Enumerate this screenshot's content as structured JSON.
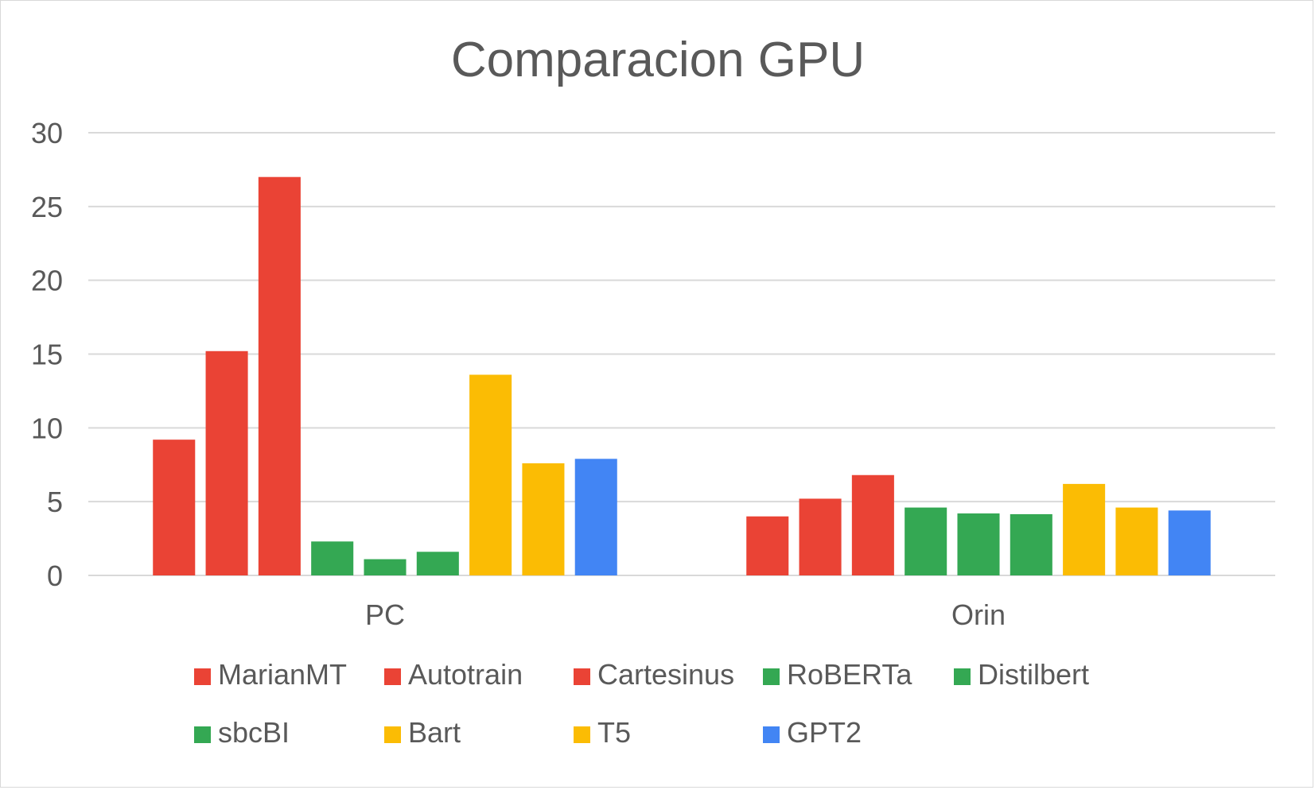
{
  "chart_data": {
    "type": "bar",
    "title": "Comparacion GPU",
    "xlabel": "",
    "ylabel": "",
    "ylim": [
      0,
      30
    ],
    "yticks": [
      0,
      5,
      10,
      15,
      20,
      25,
      30
    ],
    "categories": [
      "PC",
      "Orin"
    ],
    "grid": true,
    "legend_position": "bottom",
    "series": [
      {
        "name": "MarianMT",
        "color": "#EA4335",
        "values": [
          9.2,
          4.0
        ]
      },
      {
        "name": "Autotrain",
        "color": "#EA4335",
        "values": [
          15.2,
          5.2
        ]
      },
      {
        "name": "Cartesinus",
        "color": "#EA4335",
        "values": [
          27.0,
          6.8
        ]
      },
      {
        "name": "RoBERTa",
        "color": "#34A853",
        "values": [
          2.3,
          4.6
        ]
      },
      {
        "name": "Distilbert",
        "color": "#34A853",
        "values": [
          1.1,
          4.2
        ]
      },
      {
        "name": "sbcBI",
        "color": "#34A853",
        "values": [
          1.6,
          4.15
        ]
      },
      {
        "name": "Bart",
        "color": "#FBBC04",
        "values": [
          13.6,
          6.2
        ]
      },
      {
        "name": "T5",
        "color": "#FBBC04",
        "values": [
          7.6,
          4.6
        ]
      },
      {
        "name": "GPT2",
        "color": "#4285F4",
        "values": [
          7.9,
          4.4
        ]
      }
    ]
  }
}
